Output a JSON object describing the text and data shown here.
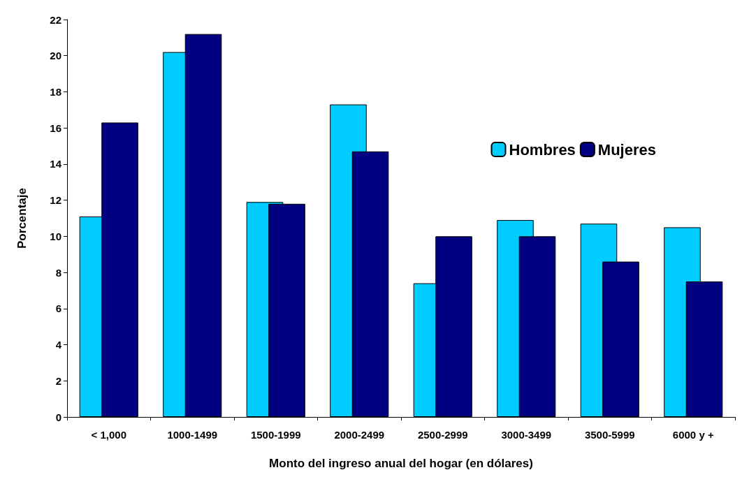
{
  "chart_data": {
    "type": "bar",
    "xlabel": "Monto del ingreso anual del hogar (en dólares)",
    "ylabel": "Porcentaje",
    "categories": [
      "< 1,000",
      "1000-1499",
      "1500-1999",
      "2000-2499",
      "2500-2999",
      "3000-3499",
      "3500-5999",
      "6000 y +"
    ],
    "series": [
      {
        "name": "Hombres",
        "color": "#00ccff",
        "values": [
          11.1,
          20.2,
          11.9,
          17.3,
          7.4,
          10.9,
          10.7,
          10.5
        ]
      },
      {
        "name": "Mujeres",
        "color": "#000080",
        "values": [
          16.3,
          21.2,
          11.8,
          14.7,
          10.0,
          10.0,
          8.6,
          7.5
        ]
      }
    ],
    "ylim": [
      0,
      22
    ],
    "yticks": [
      0,
      2,
      4,
      6,
      8,
      10,
      12,
      14,
      16,
      18,
      20,
      22
    ],
    "grid": false,
    "legend": "top right"
  }
}
